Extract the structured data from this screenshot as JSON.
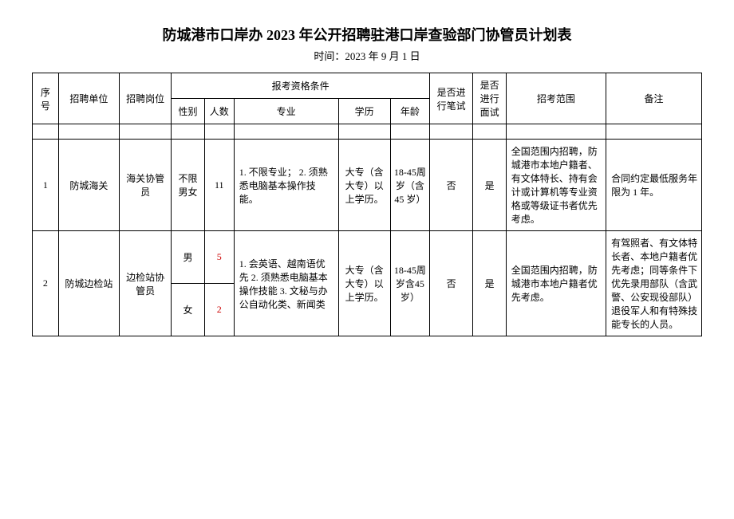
{
  "title": "防城港市口岸办 2023 年公开招聘驻港口岸查验部门协管员计划表",
  "subtitle": "时间：2023 年 9 月 1 日",
  "headers": {
    "seq": "序号",
    "unit": "招聘单位",
    "post": "招聘岗位",
    "qual_group": "报考资格条件",
    "sex": "性别",
    "num": "人数",
    "major": "专业",
    "edu": "学历",
    "age": "年龄",
    "written": "是否进行笔试",
    "interview": "是否进行面试",
    "scope": "招考范围",
    "note": "备注"
  },
  "rows": [
    {
      "seq": "1",
      "unit": "防城海关",
      "post": "海关协管员",
      "sex": "不限男女",
      "num": "11",
      "major": "1. 不限专业；\n2. 须熟悉电脑基本操作技能。",
      "edu": "大专（含大专）以上学历。",
      "age": "18-45周岁（含45 岁）",
      "written": "否",
      "interview": "是",
      "scope": "全国范围内招聘，防城港市本地户籍者、有文体特长、持有会计或计算机等专业资格或等级证书者优先考虑。",
      "note": "合同约定最低服务年限为 1 年。"
    },
    {
      "seq": "2",
      "unit": "防城边检站",
      "post": "边检站协管员",
      "sex_a": "男",
      "num_a": "5",
      "sex_b": "女",
      "num_b": "2",
      "major": "1. 会英语、越南语优先\n2. 须熟悉电脑基本操作技能\n3. 文秘与办公自动化类、新闻类",
      "edu": "大专（含大专）以上学历。",
      "age": "18-45周岁含45 岁）",
      "written": "否",
      "interview": "是",
      "scope": "全国范围内招聘，防城港市本地户籍者优先考虑。",
      "note": "有驾照者、有文体特长者、本地户籍者优先考虑；同等条件下优先录用部队（含武警、公安现役部队）退役军人和有特殊技能专长的人员。"
    }
  ]
}
